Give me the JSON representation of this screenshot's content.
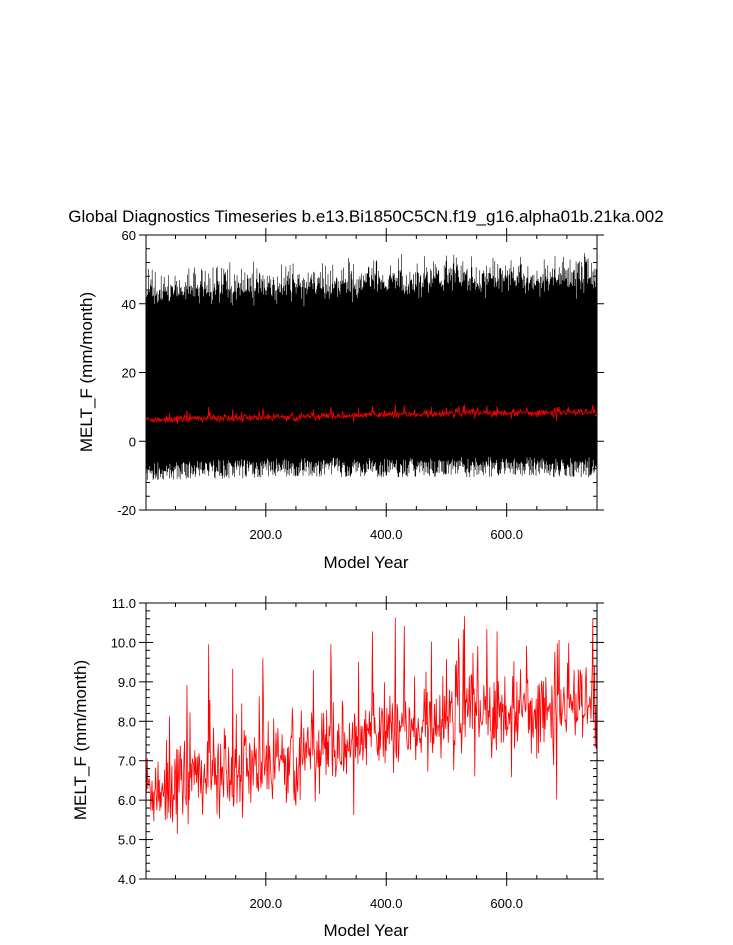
{
  "title": "Global Diagnostics Timeseries b.e13.Bi1850C5CN.f19_g16.alpha01b.21ka.002",
  "colors": {
    "monthly_series": "#000000",
    "annual_series": "#ff0000"
  },
  "chart_data": [
    {
      "type": "line",
      "title": "Global Diagnostics Timeseries b.e13.Bi1850C5CN.f19_g16.alpha01b.21ka.002",
      "xlabel": "Model Year",
      "ylabel": "MELT_F (mm/month)",
      "xlim": [
        1,
        750
      ],
      "ylim": [
        -20,
        60
      ],
      "xticks": [
        200,
        400,
        600
      ],
      "xtick_labels": [
        "200.0",
        "400.0",
        "600.0"
      ],
      "yticks": [
        -20,
        0,
        20,
        40,
        60
      ],
      "ytick_labels": [
        "-20",
        "0",
        "20",
        "40",
        "60"
      ],
      "grid": false,
      "series": [
        {
          "kind": "monthly",
          "color": "#000000",
          "year_start": 1,
          "year_end": 750,
          "envelope_max": [
            46,
            48,
            50,
            50
          ],
          "envelope_min": [
            -10,
            -9,
            -9,
            -9
          ]
        },
        {
          "kind": "annual_mean",
          "color": "#ff0000",
          "year_start": 1,
          "year_end": 750,
          "trend": [
            6.3,
            6.9,
            7.6,
            8.1,
            8.3
          ]
        }
      ]
    },
    {
      "type": "line",
      "title": "",
      "xlabel": "Model Year",
      "ylabel": "MELT_F (mm/month)",
      "xlim": [
        1,
        750
      ],
      "ylim": [
        4.0,
        11.0
      ],
      "xticks": [
        200,
        400,
        600
      ],
      "xtick_labels": [
        "200.0",
        "400.0",
        "600.0"
      ],
      "yticks": [
        4,
        5,
        6,
        7,
        8,
        9,
        10,
        11
      ],
      "ytick_labels": [
        "4.0",
        "5.0",
        "6.0",
        "7.0",
        "8.0",
        "9.0",
        "10.0",
        "11.0"
      ],
      "grid": false,
      "series": [
        {
          "kind": "annual_mean",
          "color": "#ff0000",
          "year_start": 1,
          "year_end": 750,
          "trend": [
            6.3,
            6.9,
            7.6,
            8.1,
            8.3
          ]
        }
      ]
    }
  ]
}
